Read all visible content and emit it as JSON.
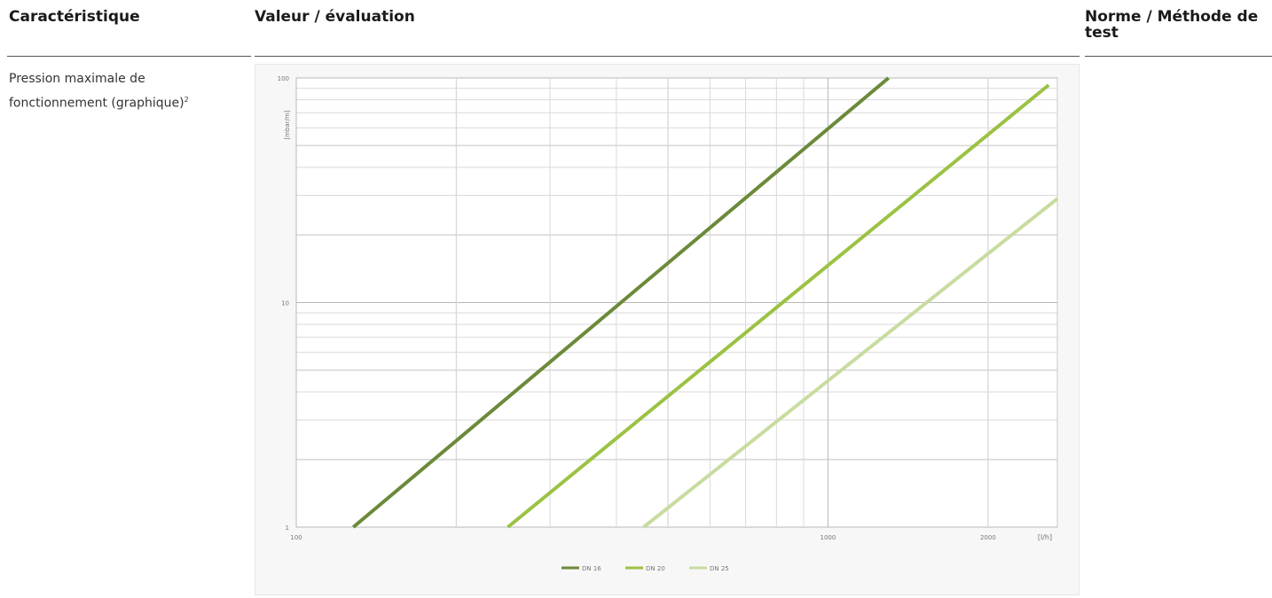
{
  "table": {
    "headers": {
      "col1": "Caractéristique",
      "col2": "Valeur / évaluation",
      "col3": "Norme / Méthode de test"
    },
    "row": {
      "label": "Pression maximale de fonctionnement (graphique)",
      "footnote": "2"
    }
  },
  "chart_data": {
    "type": "line",
    "title": "",
    "xlabel": "[l/h]",
    "ylabel": "[mbar/m]",
    "xscale": "log",
    "yscale": "log",
    "xlim": [
      100,
      2700
    ],
    "ylim": [
      1,
      100
    ],
    "x_tick_labels": [
      "100",
      "1000",
      "2000",
      "[l/h]"
    ],
    "y_tick_labels": [
      "100",
      "10",
      "1"
    ],
    "grid": true,
    "legend_position": "bottom",
    "series": [
      {
        "name": "DN 16",
        "color": "#6b8a3a",
        "x": [
          128,
          1300
        ],
        "y": [
          1,
          100
        ]
      },
      {
        "name": "DN 20",
        "color": "#9bc244",
        "x": [
          250,
          2600
        ],
        "y": [
          1,
          93
        ]
      },
      {
        "name": "DN 25",
        "color": "#c8dca0",
        "x": [
          450,
          2700
        ],
        "y": [
          1,
          29
        ]
      }
    ]
  }
}
